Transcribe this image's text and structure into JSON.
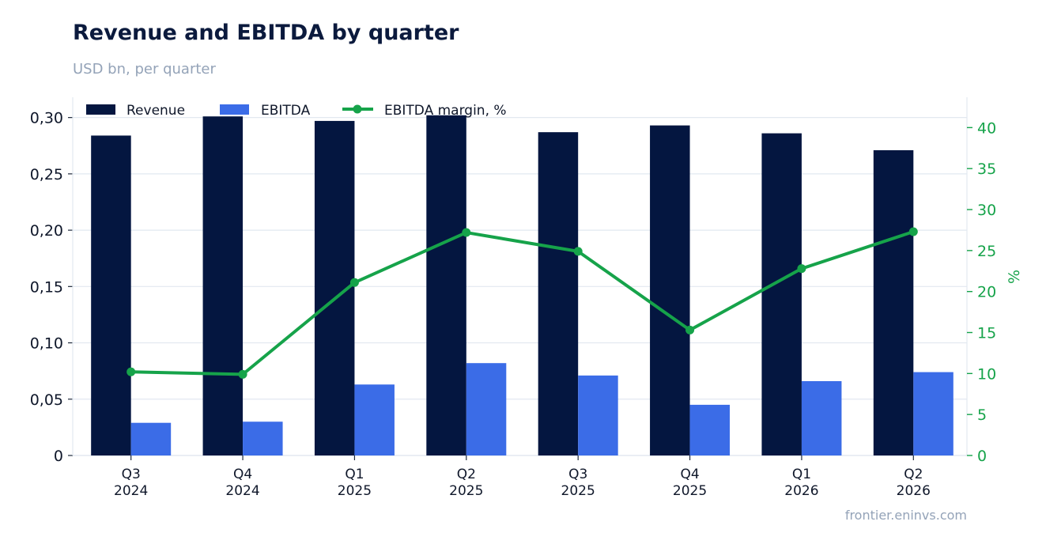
{
  "header": {
    "title": "Revenue and EBITDA by quarter",
    "subtitle": "USD bn, per quarter"
  },
  "footer": {
    "source": "frontier.eninvs.com"
  },
  "colors": {
    "revenue": "#041640",
    "ebitda": "#3b6ce7",
    "margin": "#16a34a",
    "grid": "#e2e8f0",
    "axis_text": "#0f172a"
  },
  "chart_data": {
    "type": "bar",
    "categories": [
      [
        "Q3",
        "2024"
      ],
      [
        "Q4",
        "2024"
      ],
      [
        "Q1",
        "2025"
      ],
      [
        "Q2",
        "2025"
      ],
      [
        "Q3",
        "2025"
      ],
      [
        "Q4",
        "2025"
      ],
      [
        "Q1",
        "2026"
      ],
      [
        "Q2",
        "2026"
      ]
    ],
    "series": [
      {
        "name": "Revenue",
        "kind": "bar",
        "axis": "left",
        "values": [
          0.284,
          0.301,
          0.297,
          0.302,
          0.287,
          0.293,
          0.286,
          0.271
        ]
      },
      {
        "name": "EBITDA",
        "kind": "bar",
        "axis": "left",
        "values": [
          0.029,
          0.03,
          0.063,
          0.082,
          0.071,
          0.045,
          0.066,
          0.074
        ]
      },
      {
        "name": "EBITDA margin, %",
        "kind": "line",
        "axis": "right",
        "values": [
          10.2,
          9.9,
          21.1,
          27.2,
          24.9,
          15.3,
          22.8,
          27.3
        ]
      }
    ],
    "y_left": {
      "ylim": [
        0,
        0.318
      ],
      "ticks": [
        "0",
        "0,05",
        "0,10",
        "0,15",
        "0,20",
        "0,25",
        "0,30"
      ],
      "tick_values": [
        0,
        0.05,
        0.1,
        0.15,
        0.2,
        0.25,
        0.3
      ]
    },
    "y_right": {
      "label": "%",
      "ylim": [
        0,
        43.7
      ],
      "ticks": [
        0,
        5,
        10,
        15,
        20,
        25,
        30,
        35,
        40
      ]
    },
    "grid": true,
    "legend_position": "top-left"
  }
}
